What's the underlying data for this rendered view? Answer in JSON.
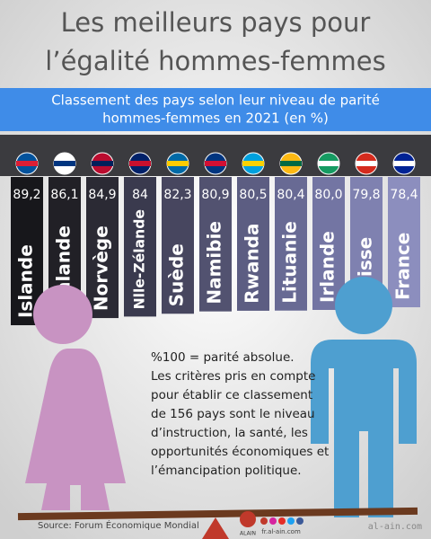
{
  "chart_data": {
    "type": "bar",
    "title": [
      "Les meilleurs pays pour",
      "l’égalité hommes-femmes"
    ],
    "subtitle": [
      "Classement des pays selon leur niveau de parité",
      "hommes-femmes en 2021 (en %)"
    ],
    "categories": [
      "Islande",
      "Finlande",
      "Norvège",
      "Nlle-Zélande",
      "Suède",
      "Namibie",
      "Rwanda",
      "Lituanie",
      "Irlande",
      "Suisse",
      "France"
    ],
    "values": [
      89.2,
      86.1,
      84.9,
      84,
      82.3,
      80.9,
      80.5,
      80.4,
      80.0,
      79.8,
      78.4
    ],
    "value_labels": [
      "89,2",
      "86,1",
      "84,9",
      "84",
      "82,3",
      "80,9",
      "80,5",
      "80,4",
      "80,0",
      "79,8",
      "78,4"
    ],
    "colors": [
      "#17171b",
      "#212026",
      "#2b2a34",
      "#3a3a4e",
      "#47465f",
      "#525270",
      "#5c5d82",
      "#686a94",
      "#7375a3",
      "#7f81b0",
      "#8c8ebe"
    ]
  },
  "note": [
    "%100 = parité absolue.",
    "Les critères pris en compte",
    "pour établir ce classement",
    "de 156 pays sont le niveau",
    "d’instruction, la santé, les",
    "opportunités économiques et",
    "l’émancipation politique."
  ],
  "source": "Source: Forum Économique Mondial",
  "logo": "ALAIN",
  "website": "fr.al-ain.com",
  "watermark": "al-ain.com"
}
